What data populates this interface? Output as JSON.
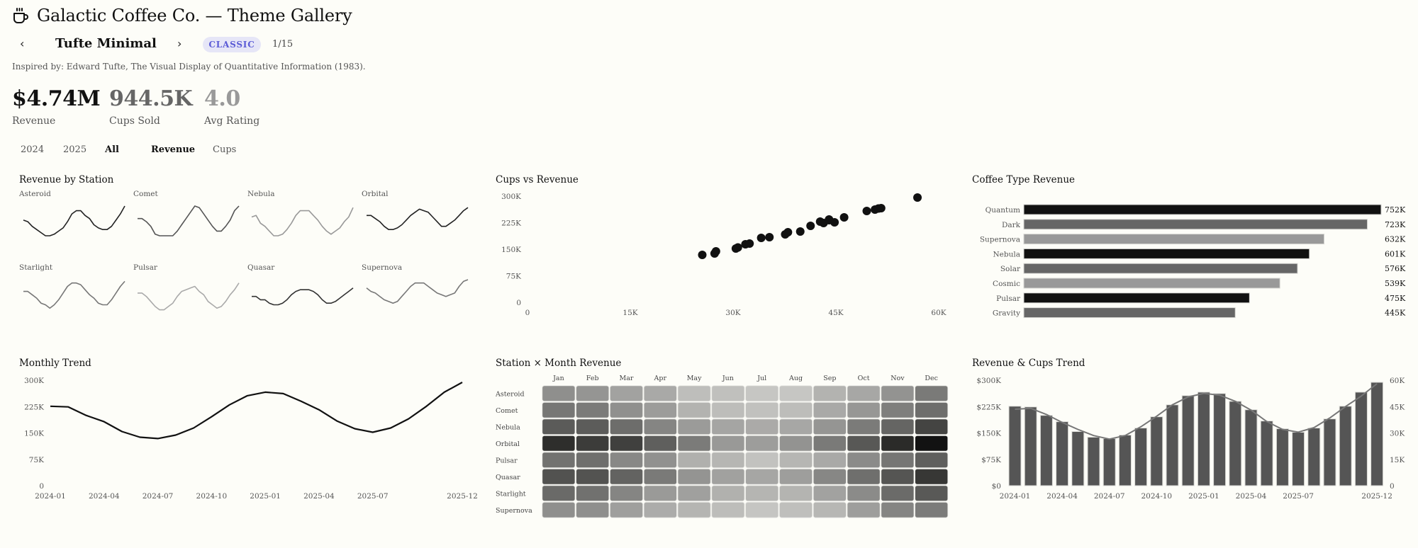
{
  "header": {
    "app_title": "Galactic Coffee Co. — Theme Gallery",
    "icon": "coffee-cup-icon",
    "prev_label": "‹",
    "next_label": "›",
    "theme_name": "Tufte Minimal",
    "theme_badge": "CLASSIC",
    "theme_counter": "1/15",
    "inspired_by": "Inspired by: Edward Tufte, The Visual Display of Quantitative Information (1983).",
    "badge_color": "#5b5bd6"
  },
  "kpis": [
    {
      "value": "$4.74M",
      "label": "Revenue",
      "color": "#111111"
    },
    {
      "value": "944.5K",
      "label": "Cups Sold",
      "color": "#666666"
    },
    {
      "value": "4.0",
      "label": "Avg Rating",
      "color": "#999999"
    }
  ],
  "filters": {
    "years": [
      {
        "label": "2024",
        "active": false
      },
      {
        "label": "2025",
        "active": false
      },
      {
        "label": "All",
        "active": true
      }
    ],
    "metrics": [
      {
        "label": "Revenue",
        "active": true
      },
      {
        "label": "Cups",
        "active": false
      }
    ]
  },
  "panels": {
    "revenue_by_station": "Revenue by Station",
    "cups_vs_revenue": "Cups vs Revenue",
    "coffee_type_revenue": "Coffee Type Revenue",
    "monthly_trend": "Monthly Trend",
    "station_month_revenue": "Station × Month Revenue",
    "revenue_cups_trend": "Revenue & Cups Trend"
  },
  "chart_data": [
    {
      "id": "sparklines",
      "type": "line",
      "title": "Revenue by Station",
      "x": [
        "2024-01",
        "2024-02",
        "2024-03",
        "2024-04",
        "2024-05",
        "2024-06",
        "2024-07",
        "2024-08",
        "2024-09",
        "2024-10",
        "2024-11",
        "2024-12",
        "2025-01",
        "2025-02",
        "2025-03",
        "2025-04",
        "2025-05",
        "2025-06",
        "2025-07",
        "2025-08",
        "2025-09",
        "2025-10",
        "2025-11",
        "2025-12"
      ],
      "series": [
        {
          "name": "Asteroid",
          "color": "#222222",
          "values": [
            28,
            27,
            24,
            22,
            20,
            18,
            18,
            19,
            21,
            23,
            27,
            32,
            34,
            34,
            31,
            29,
            25,
            23,
            22,
            22,
            24,
            28,
            32,
            37
          ]
        },
        {
          "name": "Comet",
          "color": "#555555",
          "values": [
            29,
            29,
            27,
            24,
            19,
            18,
            18,
            18,
            18,
            21,
            25,
            29,
            33,
            37,
            36,
            32,
            28,
            24,
            21,
            21,
            24,
            28,
            34,
            37
          ]
        },
        {
          "name": "Nebula",
          "color": "#999999",
          "values": [
            30,
            31,
            26,
            24,
            21,
            18,
            18,
            19,
            22,
            26,
            31,
            34,
            34,
            34,
            31,
            28,
            24,
            21,
            19,
            21,
            23,
            27,
            30,
            36
          ]
        },
        {
          "name": "Orbital",
          "color": "#222222",
          "values": [
            31,
            31,
            29,
            27,
            24,
            22,
            22,
            23,
            25,
            28,
            31,
            33,
            35,
            34,
            33,
            30,
            27,
            24,
            24,
            26,
            28,
            31,
            34,
            36
          ]
        },
        {
          "name": "Starlight",
          "color": "#777777",
          "values": [
            30,
            30,
            28,
            26,
            23,
            22,
            20,
            22,
            25,
            29,
            33,
            35,
            35,
            34,
            31,
            28,
            26,
            23,
            22,
            22,
            25,
            29,
            33,
            36
          ]
        },
        {
          "name": "Pulsar",
          "color": "#aaaaaa",
          "values": [
            29,
            29,
            27,
            24,
            21,
            19,
            19,
            21,
            23,
            27,
            30,
            31,
            32,
            33,
            30,
            28,
            24,
            22,
            20,
            21,
            24,
            28,
            31,
            35
          ]
        },
        {
          "name": "Quasar",
          "color": "#333333",
          "values": [
            27,
            27,
            25,
            25,
            23,
            22,
            22,
            23,
            25,
            28,
            30,
            31,
            31,
            31,
            30,
            28,
            25,
            23,
            23,
            24,
            26,
            28,
            30,
            32
          ]
        },
        {
          "name": "Supernova",
          "color": "#777777",
          "values": [
            32,
            30,
            29,
            27,
            25,
            24,
            23,
            24,
            27,
            30,
            33,
            35,
            35,
            35,
            33,
            31,
            29,
            28,
            27,
            28,
            29,
            33,
            36,
            37
          ]
        }
      ]
    },
    {
      "id": "scatter",
      "type": "scatter",
      "title": "Cups vs Revenue",
      "xlabel": "",
      "ylabel": "",
      "xlim": [
        0,
        60000
      ],
      "ylim": [
        0,
        300000
      ],
      "xticks": [
        "0",
        "15K",
        "30K",
        "45K",
        "60K"
      ],
      "yticks": [
        "300K",
        "225K",
        "150K",
        "75K",
        "0"
      ],
      "points": [
        {
          "x": 25500,
          "y": 134000
        },
        {
          "x": 27300,
          "y": 138000
        },
        {
          "x": 27500,
          "y": 144000
        },
        {
          "x": 30400,
          "y": 152000
        },
        {
          "x": 30700,
          "y": 155000
        },
        {
          "x": 31800,
          "y": 164000
        },
        {
          "x": 32400,
          "y": 166000
        },
        {
          "x": 34100,
          "y": 182000
        },
        {
          "x": 35300,
          "y": 184000
        },
        {
          "x": 37600,
          "y": 192000
        },
        {
          "x": 38000,
          "y": 198000
        },
        {
          "x": 39800,
          "y": 200000
        },
        {
          "x": 41300,
          "y": 216000
        },
        {
          "x": 42700,
          "y": 228000
        },
        {
          "x": 43200,
          "y": 224000
        },
        {
          "x": 44000,
          "y": 234000
        },
        {
          "x": 44800,
          "y": 226000
        },
        {
          "x": 46200,
          "y": 240000
        },
        {
          "x": 49500,
          "y": 258000
        },
        {
          "x": 50700,
          "y": 262000
        },
        {
          "x": 51200,
          "y": 265000
        },
        {
          "x": 51600,
          "y": 266000
        },
        {
          "x": 44000,
          "y": 232000
        },
        {
          "x": 56900,
          "y": 296000
        }
      ],
      "color": "#111111"
    },
    {
      "id": "coffee_type",
      "type": "bar",
      "orientation": "horizontal",
      "title": "Coffee Type Revenue",
      "categories": [
        "Quantum",
        "Dark",
        "Supernova",
        "Nebula",
        "Solar",
        "Cosmic",
        "Pulsar",
        "Gravity"
      ],
      "values": [
        752,
        723,
        632,
        601,
        576,
        539,
        475,
        445
      ],
      "value_labels": [
        "752K",
        "723K",
        "632K",
        "601K",
        "576K",
        "539K",
        "475K",
        "445K"
      ],
      "colors": [
        "#111111",
        "#666666",
        "#999999",
        "#111111",
        "#666666",
        "#999999",
        "#111111",
        "#666666"
      ],
      "units": "K"
    },
    {
      "id": "monthly_trend",
      "type": "line",
      "title": "Monthly Trend",
      "ylim": [
        0,
        300000
      ],
      "yticks": [
        "300K",
        "225K",
        "150K",
        "75K",
        "0"
      ],
      "xtick_labels": [
        {
          "i": 0,
          "label": "2024-01"
        },
        {
          "i": 3,
          "label": "2024-04"
        },
        {
          "i": 6,
          "label": "2024-07"
        },
        {
          "i": 9,
          "label": "2024-10"
        },
        {
          "i": 12,
          "label": "2025-01"
        },
        {
          "i": 15,
          "label": "2025-04"
        },
        {
          "i": 18,
          "label": "2025-07"
        },
        {
          "i": 23,
          "label": "2025-12"
        }
      ],
      "x": [
        "2024-01",
        "2024-02",
        "2024-03",
        "2024-04",
        "2024-05",
        "2024-06",
        "2024-07",
        "2024-08",
        "2024-09",
        "2024-10",
        "2024-11",
        "2024-12",
        "2025-01",
        "2025-02",
        "2025-03",
        "2025-04",
        "2025-05",
        "2025-06",
        "2025-07",
        "2025-08",
        "2025-09",
        "2025-10",
        "2025-11",
        "2025-12"
      ],
      "values": [
        226000,
        224000,
        200000,
        182000,
        154000,
        138000,
        134000,
        144000,
        164000,
        196000,
        230000,
        256000,
        266000,
        262000,
        240000,
        216000,
        184000,
        162000,
        152000,
        164000,
        190000,
        226000,
        266000,
        294000
      ],
      "color": "#111111"
    },
    {
      "id": "heatmap",
      "type": "heatmap",
      "title": "Station × Month Revenue",
      "columns": [
        "Jan",
        "Feb",
        "Mar",
        "Apr",
        "May",
        "Jun",
        "Jul",
        "Aug",
        "Sep",
        "Oct",
        "Nov",
        "Dec"
      ],
      "rows": [
        "Asteroid",
        "Comet",
        "Nebula",
        "Orbital",
        "Pulsar",
        "Quasar",
        "Starlight",
        "Supernova"
      ],
      "cell_colors": [
        [
          "#8f8f8d",
          "#959593",
          "#a2a2a0",
          "#a9a9a7",
          "#bebebb",
          "#c0c0bd",
          "#c6c6c3",
          "#c6c6c3",
          "#b3b3b0",
          "#a7a7a5",
          "#939391",
          "#7a7a78"
        ],
        [
          "#777775",
          "#7b7b79",
          "#90908e",
          "#9c9c9a",
          "#b3b3b0",
          "#bdbdba",
          "#c1c1be",
          "#bdbdba",
          "#a9a9a7",
          "#979795",
          "#7f7f7d",
          "#6e6e6c"
        ],
        [
          "#5b5b59",
          "#5c5c5a",
          "#6d6d6b",
          "#858583",
          "#9b9b99",
          "#a5a5a3",
          "#abaaa8",
          "#a7a7a5",
          "#959593",
          "#7b7b79",
          "#656563",
          "#444442"
        ],
        [
          "#2e2e2c",
          "#3c3c3a",
          "#40403e",
          "#5f5f5d",
          "#7b7b79",
          "#999997",
          "#9d9d9b",
          "#939391",
          "#7a7a78",
          "#585856",
          "#2b2b29",
          "#121212"
        ],
        [
          "#727270",
          "#6f6f6d",
          "#888886",
          "#91918f",
          "#b0b0ad",
          "#b6b6b3",
          "#c2c2bf",
          "#b6b6b3",
          "#a9a9a7",
          "#8b8b89",
          "#767674",
          "#5f5f5d"
        ],
        [
          "#525250",
          "#535351",
          "#636361",
          "#7a7a78",
          "#949492",
          "#a1a19f",
          "#a6a6a4",
          "#9e9e9c",
          "#878785",
          "#6f6f6d",
          "#555553",
          "#373735"
        ],
        [
          "#6a6a68",
          "#71716f",
          "#858583",
          "#9a9a98",
          "#a0a09e",
          "#b1b1ae",
          "#b5b5b2",
          "#b4b4b1",
          "#a2a2a0",
          "#8b8b89",
          "#6b6b69",
          "#595957"
        ],
        [
          "#8f8f8d",
          "#8f8f8d",
          "#9f9f9d",
          "#acacaa",
          "#b5b5b2",
          "#bdbdba",
          "#c5c5c2",
          "#bfbfbc",
          "#b7b7b4",
          "#9e9e9c",
          "#858583",
          "#7c7c7a"
        ]
      ]
    },
    {
      "id": "combo",
      "type": "bar",
      "title": "Revenue & Cups Trend",
      "ylim_left": [
        0,
        300000
      ],
      "ylim_right": [
        0,
        60000
      ],
      "yticks_left": [
        "$300K",
        "$225K",
        "$150K",
        "$75K",
        "$0"
      ],
      "yticks_right": [
        "60K",
        "45K",
        "30K",
        "15K",
        "0"
      ],
      "xtick_labels": [
        {
          "i": 0,
          "label": "2024-01"
        },
        {
          "i": 3,
          "label": "2024-04"
        },
        {
          "i": 6,
          "label": "2024-07"
        },
        {
          "i": 9,
          "label": "2024-10"
        },
        {
          "i": 12,
          "label": "2025-01"
        },
        {
          "i": 15,
          "label": "2025-04"
        },
        {
          "i": 18,
          "label": "2025-07"
        },
        {
          "i": 23,
          "label": "2025-12"
        }
      ],
      "series": [
        {
          "name": "Revenue",
          "kind": "bar",
          "axis": "left",
          "color": "#555555",
          "values": [
            226000,
            224000,
            200000,
            182000,
            154000,
            138000,
            134000,
            144000,
            164000,
            196000,
            230000,
            256000,
            266000,
            262000,
            240000,
            216000,
            184000,
            162000,
            152000,
            164000,
            190000,
            226000,
            266000,
            294000
          ]
        },
        {
          "name": "Cups",
          "kind": "line",
          "axis": "right",
          "color": "#777777",
          "values": [
            43500,
            44000,
            40500,
            36000,
            32000,
            28500,
            26500,
            28500,
            33500,
            39500,
            46000,
            50500,
            52500,
            51500,
            48000,
            43000,
            36500,
            32000,
            30500,
            33000,
            38500,
            45000,
            51000,
            58000
          ]
        }
      ]
    }
  ]
}
